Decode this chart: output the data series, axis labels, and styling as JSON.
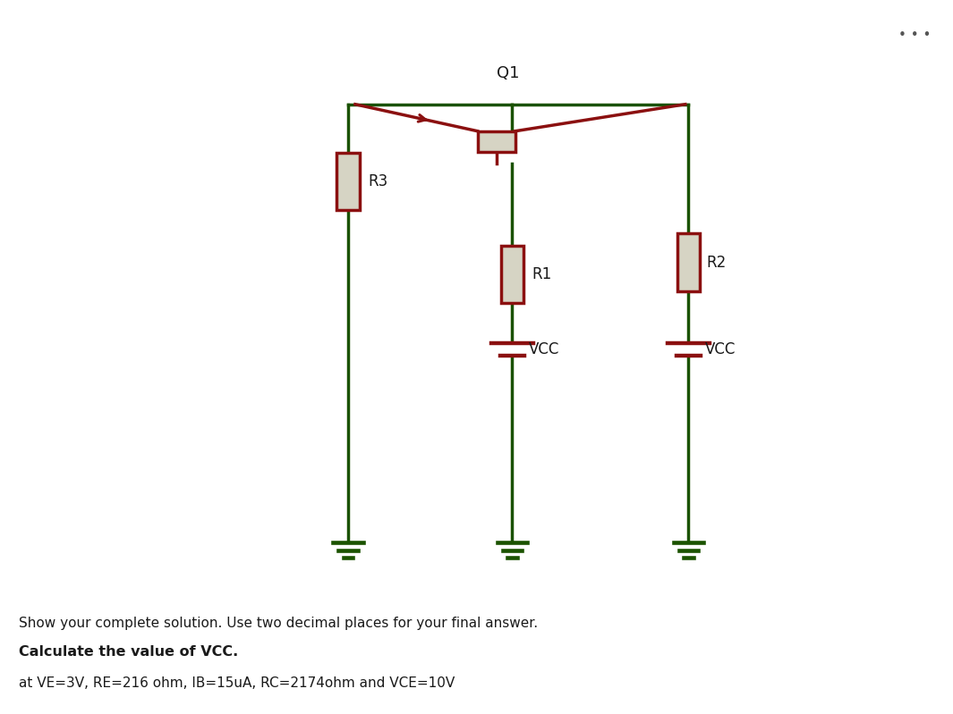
{
  "bg_color": "#d6d4c4",
  "page_bg": "#ffffff",
  "dark_green": "#1a5200",
  "dark_red": "#8b1010",
  "resistor_fill": "#d6d4c4",
  "text_color": "#1a1a1a",
  "q1_label": "Q1",
  "r1_label": "R1",
  "r2_label": "R2",
  "r3_label": "R3",
  "vcc1_label": "VCC",
  "vcc2_label": "VCC",
  "line1": "Show your complete solution. Use two decimal places for your final answer.",
  "line2": "Calculate the value of VCC.",
  "line3": "at VE=3V, RE=216 ohm, IB=15uA, RC=2174ohm and VCE=10V",
  "dots": "..."
}
